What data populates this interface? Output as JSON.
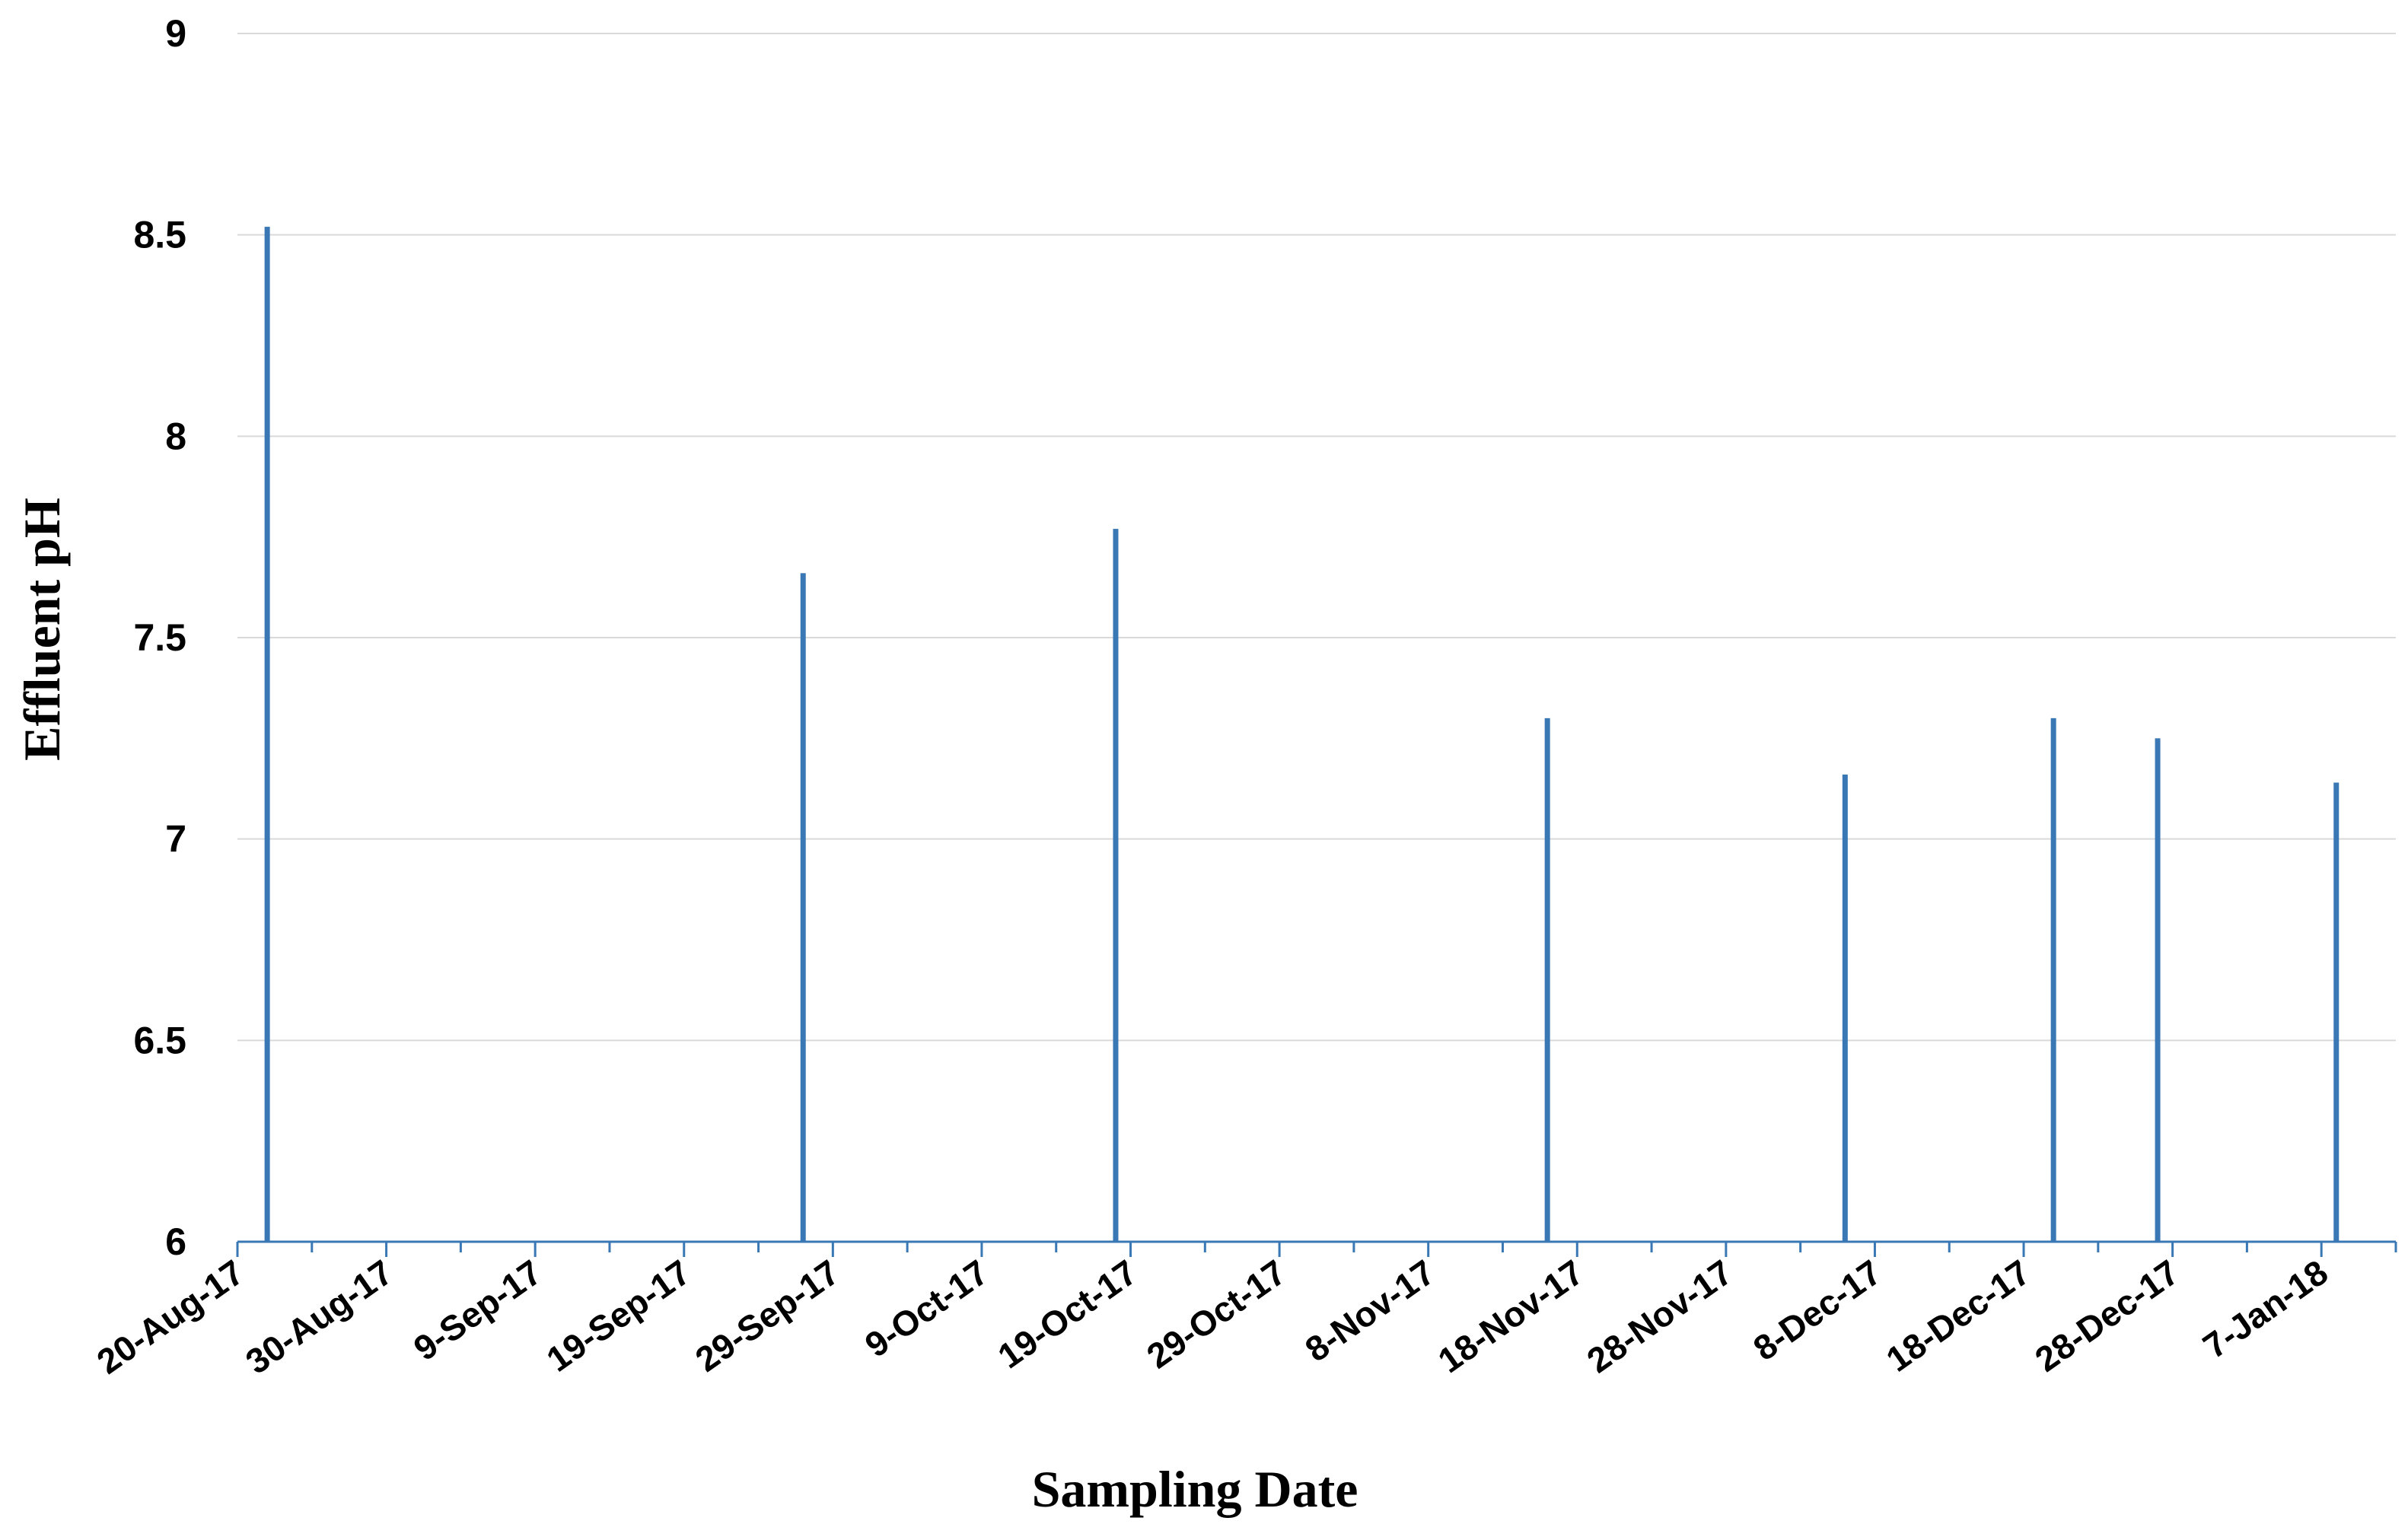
{
  "chart_data": {
    "type": "bar",
    "title": "",
    "xlabel": "Sampling Date",
    "ylabel": "Effluent pH",
    "ylim": [
      6,
      9
    ],
    "yticks": [
      "9",
      "8.5",
      "8",
      "7.5",
      "7",
      "6.5",
      "6"
    ],
    "xlim": [
      "2017-08-20",
      "2018-01-12"
    ],
    "xtick_labels": [
      "20-Aug-17",
      "30-Aug-17",
      "9-Sep-17",
      "19-Sep-17",
      "29-Sep-17",
      "9-Oct-17",
      "19-Oct-17",
      "29-Oct-17",
      "8-Nov-17",
      "18-Nov-17",
      "28-Nov-17",
      "8-Dec-17",
      "18-Dec-17",
      "28-Dec-17",
      "7-Jan-18"
    ],
    "grid": true,
    "legend": "none",
    "bar_color": "#3a78b5",
    "series": [
      {
        "x": [
          "2017-08-22",
          "2017-09-27",
          "2017-10-18",
          "2017-11-16",
          "2017-12-06",
          "2017-12-20",
          "2017-12-27",
          "2018-01-08"
        ],
        "values": [
          8.52,
          7.66,
          7.77,
          7.3,
          7.16,
          7.3,
          7.25,
          7.14
        ]
      }
    ]
  }
}
